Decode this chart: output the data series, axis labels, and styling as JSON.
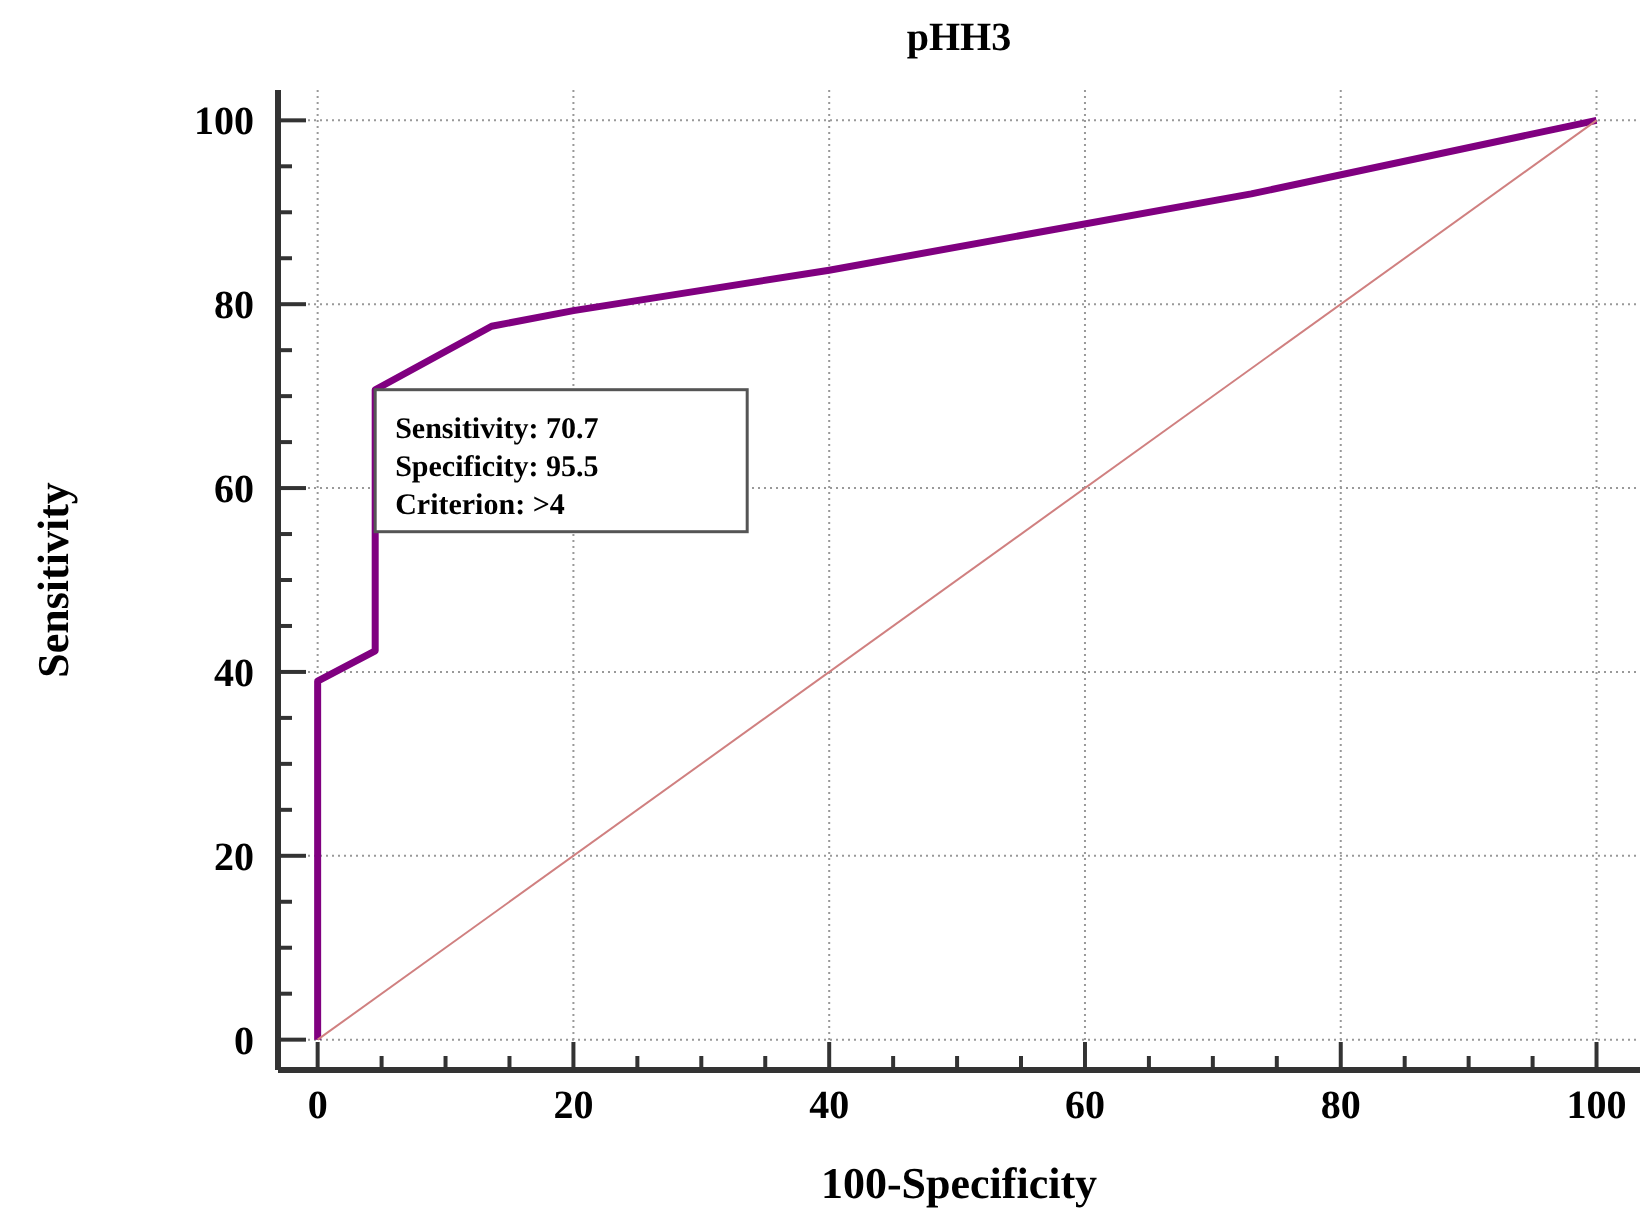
{
  "chart_data": {
    "type": "line",
    "title": "pHH3",
    "xlabel": "100-Specificity",
    "ylabel": "Sensitivity",
    "xlim": [
      -3.1,
      103.4
    ],
    "ylim": [
      -3.3,
      103.3
    ],
    "xticks": [
      0,
      {
        "value": 5,
        "label": null
      },
      {
        "value": 10,
        "label": null
      },
      {
        "value": 15,
        "label": null
      },
      20,
      {
        "value": 25,
        "label": null
      },
      {
        "value": 30,
        "label": null
      },
      {
        "value": 35,
        "label": null
      },
      40,
      {
        "value": 45,
        "label": null
      },
      {
        "value": 50,
        "label": null
      },
      {
        "value": 55,
        "label": null
      },
      60,
      {
        "value": 65,
        "label": null
      },
      {
        "value": 70,
        "label": null
      },
      {
        "value": 75,
        "label": null
      },
      80,
      {
        "value": 85,
        "label": null
      },
      {
        "value": 90,
        "label": null
      },
      {
        "value": 95,
        "label": null
      },
      100
    ],
    "yticks": [
      0,
      {
        "value": 5,
        "label": null
      },
      {
        "value": 10,
        "label": null
      },
      {
        "value": 15,
        "label": null
      },
      20,
      {
        "value": 25,
        "label": null
      },
      {
        "value": 30,
        "label": null
      },
      {
        "value": 35,
        "label": null
      },
      40,
      {
        "value": 45,
        "label": null
      },
      {
        "value": 50,
        "label": null
      },
      {
        "value": 55,
        "label": null
      },
      60,
      {
        "value": 65,
        "label": null
      },
      {
        "value": 70,
        "label": null
      },
      {
        "value": 75,
        "label": null
      },
      80,
      {
        "value": 85,
        "label": null
      },
      {
        "value": 90,
        "label": null
      },
      {
        "value": 95,
        "label": null
      },
      100
    ],
    "grid": true,
    "marker": "none",
    "series": [
      {
        "color": "#800080",
        "line_style": "solid",
        "x": [
          0,
          0,
          4.5,
          4.5,
          13.6,
          20,
          40,
          73,
          100
        ],
        "values": [
          0,
          39,
          42.3,
          70.7,
          77.6,
          79.3,
          83.7,
          92,
          100
        ]
      },
      {
        "color": "#d08080",
        "line_style": "solid",
        "x": [
          0,
          100
        ],
        "values": [
          0,
          100
        ]
      }
    ],
    "annotations": [
      {
        "text": "Sensitivity: 70.7\nSpecificity: 95.5\nCriterion: >4",
        "x": 4.5,
        "y": 70.7
      }
    ]
  }
}
